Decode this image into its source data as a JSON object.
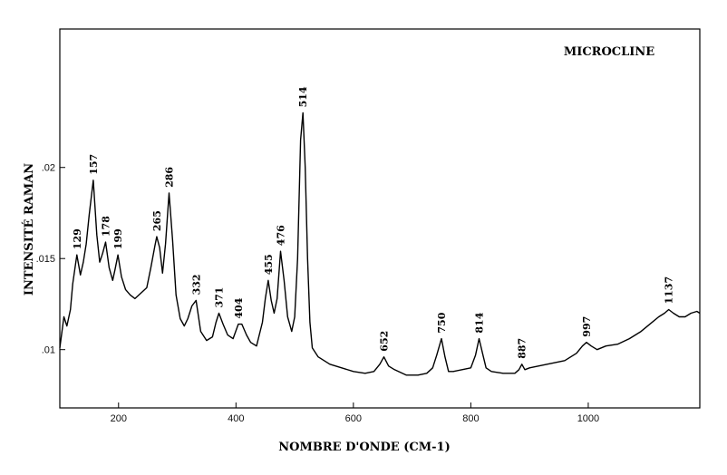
{
  "chart_data": {
    "type": "line",
    "title": "MICROCLINE",
    "xlabel": "NOMBRE D'ONDE (CM-1)",
    "ylabel": "INTENSITÉ RAMAN",
    "xlim": [
      100,
      1190
    ],
    "ylim": [
      0.0068,
      0.0276
    ],
    "x_ticks": [
      200,
      400,
      600,
      800,
      1000
    ],
    "y_ticks": [
      0.01,
      0.015,
      0.02
    ],
    "x_tick_labels": [
      "200",
      "400",
      "600",
      "800",
      "1000"
    ],
    "y_tick_labels": [
      ".01",
      ".015",
      ".02"
    ],
    "grid": false,
    "series": [
      {
        "color": "#000000",
        "x": [
          100,
          107,
          112,
          118,
          122,
          129,
          135,
          140,
          145,
          150,
          157,
          163,
          168,
          173,
          178,
          184,
          190,
          194,
          199,
          205,
          212,
          220,
          228,
          238,
          248,
          255,
          262,
          265,
          270,
          275,
          280,
          286,
          292,
          298,
          305,
          312,
          318,
          325,
          332,
          340,
          350,
          360,
          366,
          371,
          378,
          386,
          395,
          404,
          410,
          418,
          425,
          435,
          445,
          450,
          455,
          460,
          465,
          470,
          476,
          482,
          488,
          495,
          500,
          505,
          510,
          514,
          518,
          522,
          526,
          530,
          540,
          560,
          580,
          600,
          620,
          635,
          645,
          652,
          660,
          670,
          690,
          710,
          725,
          735,
          742,
          750,
          756,
          762,
          770,
          785,
          800,
          808,
          814,
          820,
          826,
          835,
          855,
          875,
          882,
          887,
          892,
          900,
          930,
          960,
          980,
          990,
          997,
          1005,
          1015,
          1030,
          1050,
          1070,
          1090,
          1105,
          1120,
          1130,
          1137,
          1145,
          1155,
          1165,
          1175,
          1185,
          1190
        ],
        "values": [
          0.0101,
          0.0118,
          0.0113,
          0.0122,
          0.0136,
          0.0152,
          0.0141,
          0.0148,
          0.0158,
          0.0174,
          0.0193,
          0.0163,
          0.0148,
          0.0153,
          0.0159,
          0.0145,
          0.0138,
          0.0144,
          0.0152,
          0.014,
          0.0133,
          0.013,
          0.0128,
          0.0131,
          0.0134,
          0.0145,
          0.0157,
          0.0162,
          0.0156,
          0.0142,
          0.0158,
          0.0186,
          0.016,
          0.013,
          0.0117,
          0.0113,
          0.0117,
          0.0124,
          0.0127,
          0.011,
          0.0105,
          0.0107,
          0.0115,
          0.012,
          0.0114,
          0.0108,
          0.0106,
          0.0114,
          0.0114,
          0.0108,
          0.0104,
          0.0102,
          0.0115,
          0.0128,
          0.0138,
          0.0127,
          0.012,
          0.0128,
          0.0154,
          0.0138,
          0.0118,
          0.011,
          0.0118,
          0.015,
          0.0215,
          0.023,
          0.02,
          0.015,
          0.0115,
          0.0101,
          0.0096,
          0.0092,
          0.009,
          0.0088,
          0.0087,
          0.0088,
          0.0092,
          0.0096,
          0.0091,
          0.0089,
          0.0086,
          0.0086,
          0.0087,
          0.009,
          0.0097,
          0.0106,
          0.0096,
          0.0088,
          0.0088,
          0.0089,
          0.009,
          0.0097,
          0.0106,
          0.0098,
          0.009,
          0.0088,
          0.0087,
          0.0087,
          0.0089,
          0.0092,
          0.0089,
          0.009,
          0.0092,
          0.0094,
          0.0098,
          0.0102,
          0.0104,
          0.0102,
          0.01,
          0.0102,
          0.0103,
          0.0106,
          0.011,
          0.0114,
          0.0118,
          0.012,
          0.0122,
          0.012,
          0.0118,
          0.0118,
          0.012,
          0.0121,
          0.012
        ]
      }
    ],
    "peak_labels": [
      {
        "text": "129",
        "x": 129,
        "y": 0.0152
      },
      {
        "text": "157",
        "x": 157,
        "y": 0.0193
      },
      {
        "text": "178",
        "x": 178,
        "y": 0.0159
      },
      {
        "text": "199",
        "x": 199,
        "y": 0.0152
      },
      {
        "text": "265",
        "x": 265,
        "y": 0.0162
      },
      {
        "text": "286",
        "x": 286,
        "y": 0.0186
      },
      {
        "text": "332",
        "x": 332,
        "y": 0.0127
      },
      {
        "text": "371",
        "x": 371,
        "y": 0.012
      },
      {
        "text": "404",
        "x": 404,
        "y": 0.0114
      },
      {
        "text": "455",
        "x": 455,
        "y": 0.0138
      },
      {
        "text": "476",
        "x": 476,
        "y": 0.0154
      },
      {
        "text": "514",
        "x": 514,
        "y": 0.023
      },
      {
        "text": "652",
        "x": 652,
        "y": 0.0096
      },
      {
        "text": "750",
        "x": 750,
        "y": 0.0106
      },
      {
        "text": "814",
        "x": 814,
        "y": 0.0106
      },
      {
        "text": "887",
        "x": 887,
        "y": 0.0092
      },
      {
        "text": "997",
        "x": 997,
        "y": 0.0104
      },
      {
        "text": "1137",
        "x": 1137,
        "y": 0.0122
      }
    ]
  }
}
